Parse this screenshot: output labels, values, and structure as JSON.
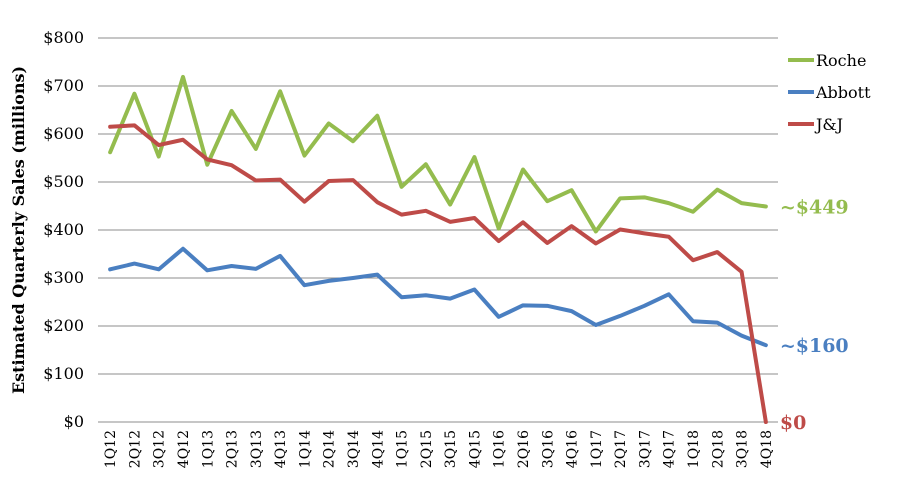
{
  "chart_data": {
    "type": "line",
    "ylabel": "Estimated Quarterly Sales (millions)",
    "xlabel": "",
    "ylim": [
      0,
      800
    ],
    "yticks": [
      "$0",
      "$100",
      "$200",
      "$300",
      "$400",
      "$500",
      "$600",
      "$700",
      "$800"
    ],
    "y_tick_values": [
      0,
      100,
      200,
      300,
      400,
      500,
      600,
      700,
      800
    ],
    "grid": "horizontal",
    "legend_position": "top-right",
    "categories": [
      "1Q12",
      "2Q12",
      "3Q12",
      "4Q12",
      "1Q13",
      "2Q13",
      "3Q13",
      "4Q13",
      "1Q14",
      "2Q14",
      "3Q14",
      "4Q14",
      "1Q15",
      "2Q15",
      "3Q15",
      "4Q15",
      "1Q16",
      "2Q16",
      "3Q16",
      "4Q16",
      "1Q17",
      "2Q17",
      "3Q17",
      "4Q17",
      "1Q18",
      "2Q18",
      "3Q18",
      "4Q18"
    ],
    "series": [
      {
        "name": "Roche",
        "color": "#94BC4E",
        "end_label": "~$449",
        "values": [
          562,
          684,
          553,
          719,
          536,
          648,
          569,
          689,
          555,
          622,
          585,
          638,
          490,
          537,
          453,
          552,
          403,
          526,
          460,
          483,
          397,
          466,
          468,
          456,
          438,
          484,
          456,
          449
        ]
      },
      {
        "name": "Abbott",
        "color": "#4A7FC1",
        "end_label": "~$160",
        "values": [
          318,
          330,
          318,
          361,
          316,
          325,
          319,
          346,
          285,
          294,
          300,
          307,
          260,
          264,
          257,
          276,
          219,
          243,
          242,
          231,
          202,
          221,
          242,
          266,
          210,
          207,
          180,
          160
        ]
      },
      {
        "name": "J&J",
        "color": "#BE4B48",
        "end_label": "$0",
        "values": [
          615,
          618,
          577,
          588,
          547,
          535,
          503,
          505,
          459,
          502,
          504,
          458,
          432,
          440,
          417,
          425,
          377,
          416,
          373,
          408,
          372,
          401,
          393,
          386,
          337,
          354,
          313,
          0
        ]
      }
    ]
  }
}
